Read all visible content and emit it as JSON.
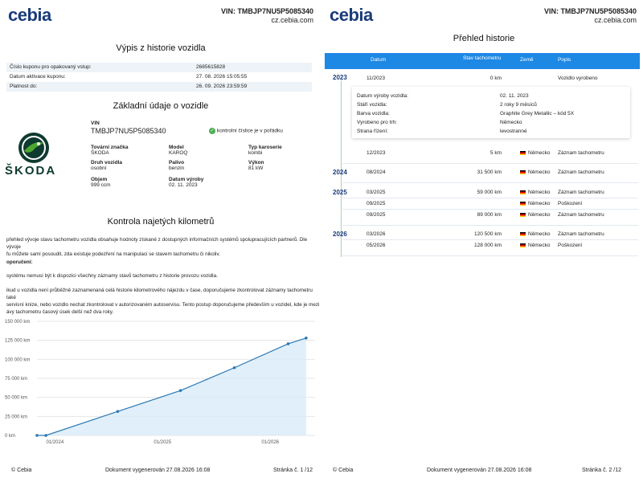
{
  "brand": "cebia",
  "page1": {
    "vin_header": "VIN: TMBJP7NU5P5085340",
    "site": "cz.cebia.com",
    "title": "Výpis z historie vozidla",
    "coupon": [
      {
        "label": "Číslo kuponu pro opakovaný vstup:",
        "value": "2685615828"
      },
      {
        "label": "Datum aktivace kuponu:",
        "value": "27. 08. 2026 15:05:55"
      },
      {
        "label": "Platnost do:",
        "value": "26. 09. 2026 23:59:59"
      }
    ],
    "basic_title": "Základní údaje o vozidle",
    "vin_label": "VIN",
    "vin_value": "TMBJP7NU5P5085340",
    "checksum_text": "kontrolní číslice je v pořádku",
    "make_logo_text": "ŠKODA",
    "fields": [
      {
        "label": "Tovární značka",
        "value": "ŠKODA"
      },
      {
        "label": "Model",
        "value": "KAROQ"
      },
      {
        "label": "Typ karoserie",
        "value": "kombi"
      },
      {
        "label": "Druh vozidla",
        "value": "osobní"
      },
      {
        "label": "Palivo",
        "value": "benzin"
      },
      {
        "label": "Výkon",
        "value": "81 kW"
      },
      {
        "label": "Objem",
        "value": "999 ccm"
      },
      {
        "label": "Datum výroby",
        "value": "02. 11. 2023"
      }
    ],
    "km_title": "Kontrola najetých kilometrů",
    "km_para1_a": "přehled vývoje stavu tachometru vozidla obsahuje hodnoty získané z dostupných informačních systémů spolupracujících partnerů. Dle vývoje",
    "km_para1_b": "fu můžete sami posoudit, zda existuje podezření na manipulaci se stavem tachometru či nikoliv.",
    "km_note_head": "oporučení:",
    "km_note": "systému nemusí být k dispozici všechny záznamy stavů tachometru z historie provozu vozidla.",
    "km_para2_a": "ikud u vozidla není průběžně zaznamenaná celá historie kilometrového nájezdu v čase, doporučujeme zkontrolovat záznamy tachometru také",
    "km_para2_b": "servisní knize, nebo vozidlo nechat zkontrolovat v autorizovaném autoservisu. Tento postup doporučujeme především u vozidel, kde je mezi",
    "km_para2_c": "ávy tachometru časový úsek delší než dva roky.",
    "footer_left": "© Cebia",
    "footer_mid": "Dokument vygenerován 27.08.2026 16:08",
    "footer_right": "Stránka č.  1 /12"
  },
  "chart_data": {
    "type": "area",
    "ylim": [
      0,
      150000
    ],
    "yticks": [
      "0 km",
      "25 000 km",
      "50 000 km",
      "75 000 km",
      "100 000 km",
      "125 000 km",
      "150 000 km"
    ],
    "xticks": [
      "01/2024",
      "01/2025",
      "01/2026"
    ],
    "points": [
      {
        "x": "2023-11",
        "y": 0
      },
      {
        "x": "2023-12",
        "y": 5
      },
      {
        "x": "2024-08",
        "y": 31500
      },
      {
        "x": "2025-03",
        "y": 59000
      },
      {
        "x": "2025-09",
        "y": 89000
      },
      {
        "x": "2026-03",
        "y": 120500
      },
      {
        "x": "2026-05",
        "y": 128000
      }
    ],
    "color": "#2a78b5",
    "grid": true
  },
  "page2": {
    "vin_header": "VIN: TMBJP7NU5P5085340",
    "site": "cz.cebia.com",
    "title": "Přehled historie",
    "cols": [
      "Datum",
      "Stav tachometru",
      "Země",
      "Popis"
    ],
    "years": [
      "2023",
      "2024",
      "2025",
      "2026"
    ],
    "rows": [
      {
        "date": "11/2023",
        "km": "0 km",
        "country": "",
        "desc": "Vozidlo vyrobeno"
      },
      {
        "date": "12/2023",
        "km": "5 km",
        "country": "Německo",
        "desc": "Záznam tachometru"
      },
      {
        "date": "08/2024",
        "km": "31 500 km",
        "country": "Německo",
        "desc": "Záznam tachometru"
      },
      {
        "date": "03/2025",
        "km": "59 000 km",
        "country": "Německo",
        "desc": "Záznam tachometru"
      },
      {
        "date": "09/2025",
        "km": "",
        "country": "Německo",
        "desc": "Poškození"
      },
      {
        "date": "09/2025",
        "km": "89 000 km",
        "country": "Německo",
        "desc": "Záznam tachometru"
      },
      {
        "date": "03/2026",
        "km": "120 500 km",
        "country": "Německo",
        "desc": "Záznam tachometru"
      },
      {
        "date": "05/2026",
        "km": "128 000 km",
        "country": "Německo",
        "desc": "Poškození"
      }
    ],
    "detail": [
      {
        "label": "Datum výroby vozidla:",
        "value": "02. 11. 2023"
      },
      {
        "label": "Stáří vozidla:",
        "value": "2 roky 9 měsíců"
      },
      {
        "label": "Barva vozidla:",
        "value": "Graphite Grey Metallic – kód 5X"
      },
      {
        "label": "Vyrobeno pro trh:",
        "value": "Německo"
      },
      {
        "label": "Strana řízení:",
        "value": "levostranné"
      }
    ],
    "footer_left": "© Cebia",
    "footer_mid": "Dokument vygenerován 27.08.2026 16:08",
    "footer_right": "Stránka č.  2 /12"
  }
}
